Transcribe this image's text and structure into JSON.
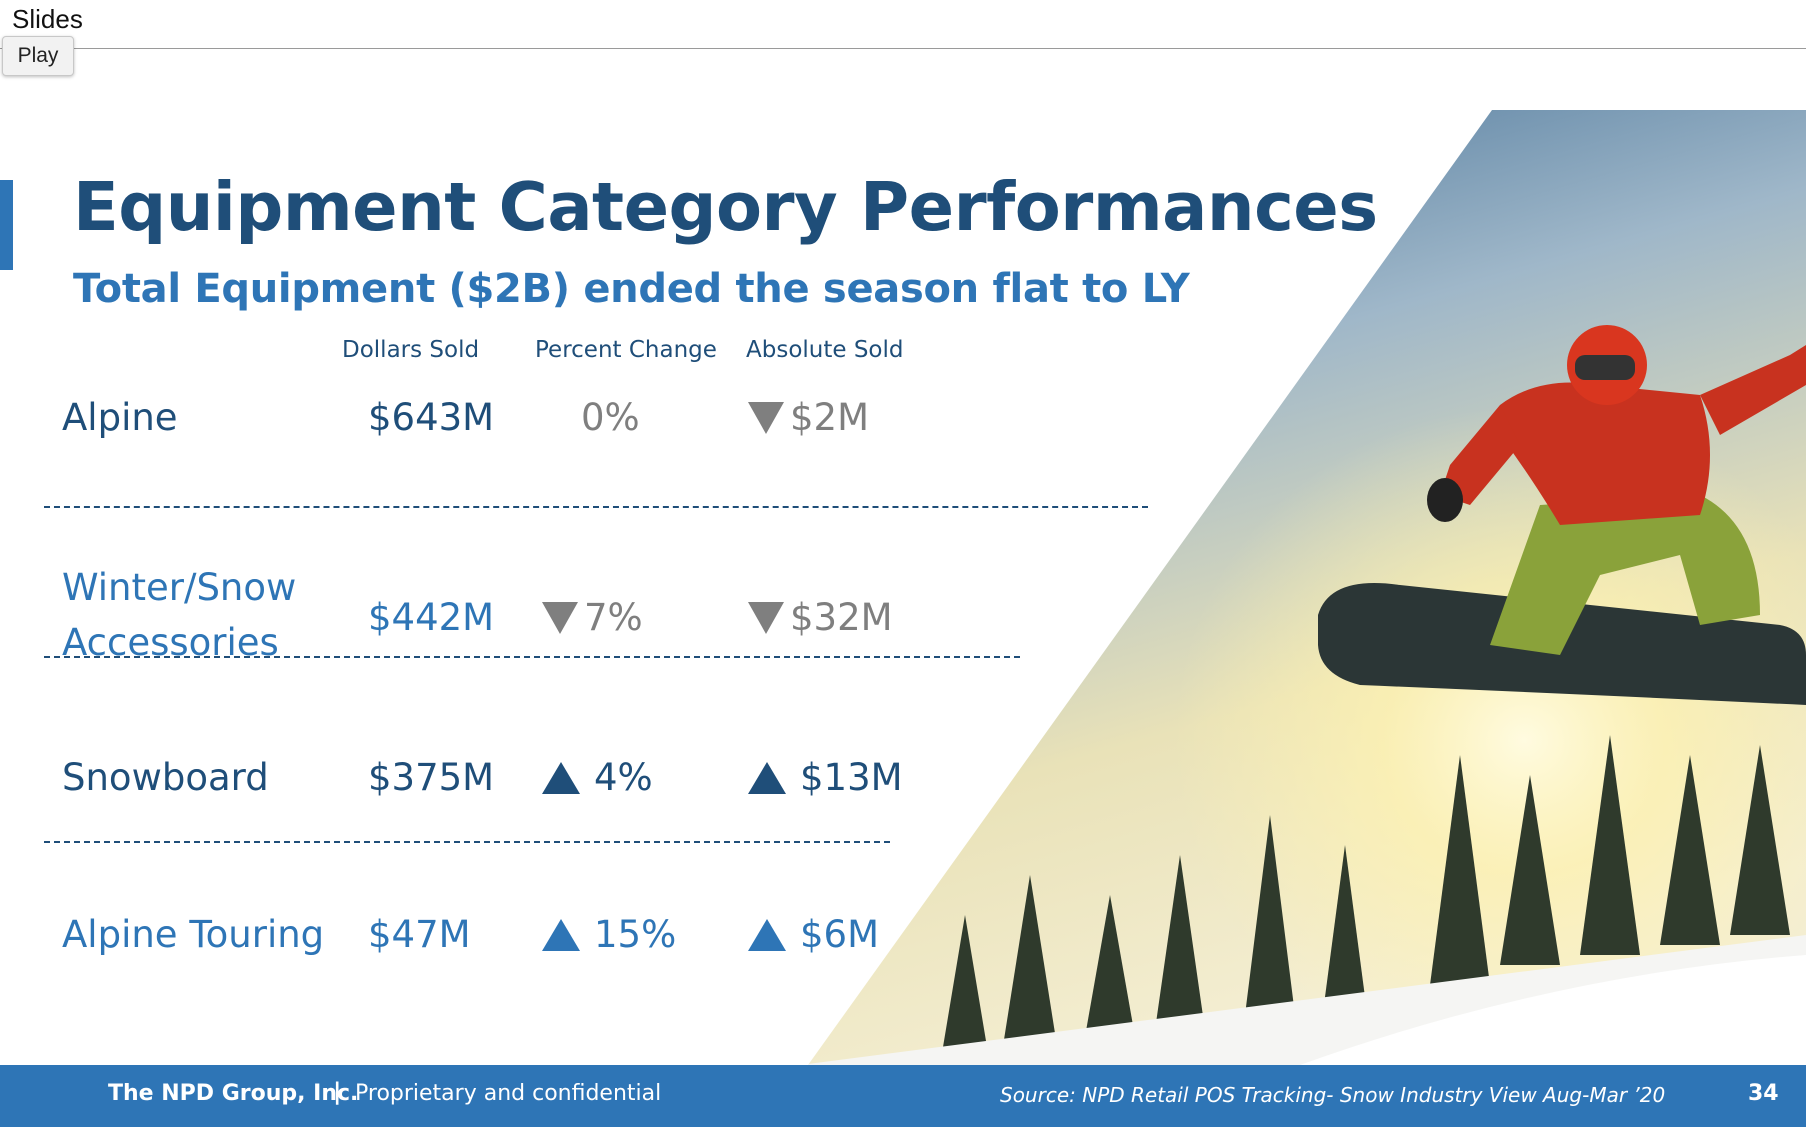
{
  "app": {
    "title": "Slides",
    "play_label": "Play"
  },
  "slide": {
    "title": "Equipment Category Performances",
    "subtitle": "Total Equipment ($2B) ended the season flat to LY",
    "columns": [
      "Dollars Sold",
      "Percent Change",
      "Absolute Sold"
    ],
    "rows": [
      {
        "label_lines": [
          "Alpine"
        ],
        "dollars": "$643M",
        "percent": "0%",
        "percent_trend": "none",
        "absolute": "$2M",
        "absolute_trend": "down"
      },
      {
        "label_lines": [
          "Winter/Snow",
          "Accessories"
        ],
        "dollars": "$442M",
        "percent": "7%",
        "percent_trend": "down",
        "absolute": "$32M",
        "absolute_trend": "down"
      },
      {
        "label_lines": [
          "Snowboard"
        ],
        "dollars": "$375M",
        "percent": "4%",
        "percent_trend": "up",
        "absolute": "$13M",
        "absolute_trend": "up"
      },
      {
        "label_lines": [
          "Alpine Touring"
        ],
        "dollars": "$47M",
        "percent": "15%",
        "percent_trend": "up",
        "absolute": "$6M",
        "absolute_trend": "up"
      }
    ],
    "image_icon": "snowboarder-photo",
    "footer": {
      "company": "The NPD Group, Inc.",
      "separator": "|",
      "confidential": "Proprietary and confidential",
      "source": "Source: NPD Retail POS Tracking- Snow Industry View Aug-Mar ’20",
      "page_number": "34"
    },
    "colors": {
      "dark_blue": "#1f4e79",
      "accent_blue": "#2e75b6",
      "neutral_gray": "#7f7f7f"
    }
  }
}
